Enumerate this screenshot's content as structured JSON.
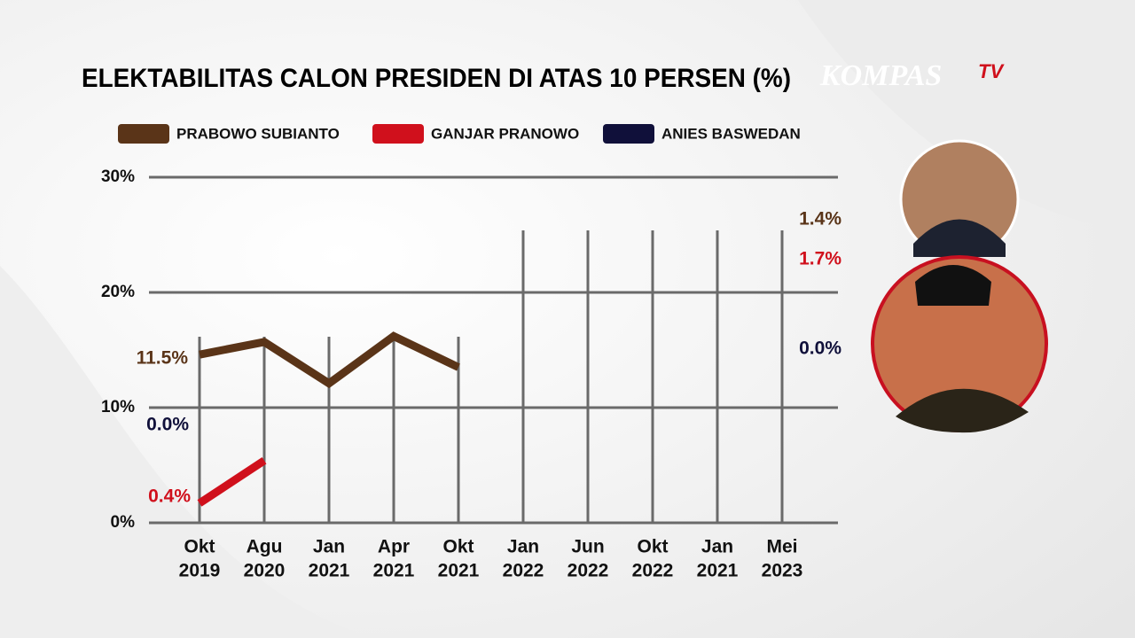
{
  "chart_data": {
    "type": "line",
    "title": "ELEKTABILITAS CALON PRESIDEN DI ATAS 10 PERSEN (%)",
    "watermark": "KOMPAS",
    "watermark_tv": "TV",
    "categories": [
      [
        "Okt",
        "2019"
      ],
      [
        "Agu",
        "2020"
      ],
      [
        "Jan",
        "2021"
      ],
      [
        "Apr",
        "2021"
      ],
      [
        "Okt",
        "2021"
      ],
      [
        "Jan",
        "2022"
      ],
      [
        "Jun",
        "2022"
      ],
      [
        "Okt",
        "2022"
      ],
      [
        "Jan",
        "2021"
      ],
      [
        "Mei",
        "2023"
      ]
    ],
    "series": [
      {
        "name": "PRABOWO SUBIANTO",
        "color": "#5a3418",
        "values": [
          14.6,
          15.7,
          12.1,
          16.2,
          13.5,
          null,
          null,
          null,
          null,
          null
        ]
      },
      {
        "name": "GANJAR PRANOWO",
        "color": "#d0101c",
        "values": [
          1.7,
          5.4,
          null,
          null,
          null,
          null,
          null,
          null,
          null,
          null
        ]
      },
      {
        "name": "ANIES BASWEDAN",
        "color": "#10103a",
        "values": [
          null,
          null,
          null,
          null,
          null,
          null,
          null,
          null,
          null,
          null
        ]
      }
    ],
    "ylim": [
      0,
      30
    ],
    "yticks": [
      {
        "value": 0,
        "label": "0%"
      },
      {
        "value": 10,
        "label": "10%"
      },
      {
        "value": 20,
        "label": "20%"
      },
      {
        "value": 30,
        "label": "30%"
      }
    ],
    "grid": true,
    "annotations": [
      {
        "text": "11.5%",
        "color": "#5a3418"
      },
      {
        "text": "0.0%",
        "color": "#10103a"
      },
      {
        "text": "0.4%",
        "color": "#d0101c"
      },
      {
        "text": "1.4%",
        "color": "#5a3418"
      },
      {
        "text": "1.7%",
        "color": "#d0101c"
      },
      {
        "text": "0.0%",
        "color": "#10103a"
      }
    ]
  }
}
